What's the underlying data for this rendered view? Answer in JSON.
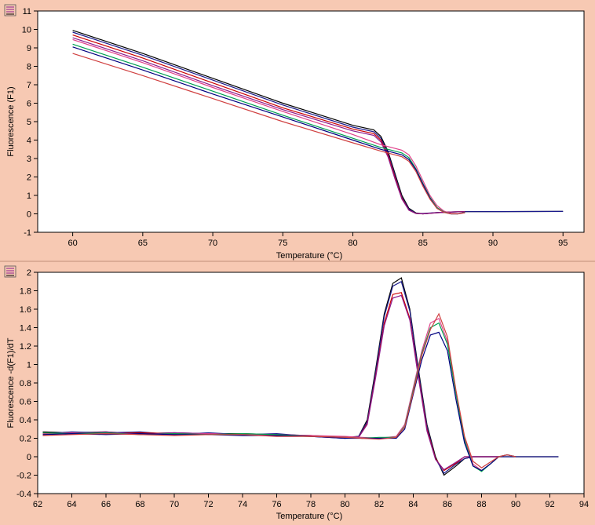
{
  "chart_data": [
    {
      "type": "line",
      "title": "",
      "xlabel": "Temperature (°C)",
      "ylabel": "Fluorescence (F1)",
      "xlim": [
        57.5,
        96.5
      ],
      "ylim": [
        -1,
        11
      ],
      "xticks": [
        60,
        65,
        70,
        75,
        80,
        85,
        90,
        95
      ],
      "yticks": [
        -1,
        0,
        1,
        2,
        3,
        4,
        5,
        6,
        7,
        8,
        9,
        10,
        11
      ],
      "grid": false,
      "legend": "none",
      "series": [
        {
          "color": "#000000",
          "x": [
            60,
            65,
            70,
            75,
            80,
            81.5,
            82,
            82.5,
            83,
            83.5,
            84,
            84.5,
            85,
            86,
            87,
            88,
            95
          ],
          "y": [
            9.95,
            8.7,
            7.35,
            6.0,
            4.8,
            4.55,
            4.2,
            3.4,
            2.2,
            1.0,
            0.3,
            0.05,
            0.0,
            0.07,
            0.1,
            0.12,
            0.13
          ]
        },
        {
          "color": "#1a1a8c",
          "x": [
            60,
            65,
            70,
            75,
            80,
            81.5,
            82,
            82.5,
            83,
            83.5,
            84,
            84.5,
            85,
            86,
            87,
            88,
            95
          ],
          "y": [
            9.85,
            8.6,
            7.25,
            5.9,
            4.7,
            4.45,
            4.1,
            3.3,
            2.1,
            0.9,
            0.25,
            0.03,
            0.02,
            0.07,
            0.1,
            0.12,
            0.13
          ]
        },
        {
          "color": "#cc0000",
          "x": [
            60,
            65,
            70,
            75,
            80,
            81.5,
            82,
            82.5,
            83,
            83.5,
            84,
            84.5,
            85,
            86,
            87,
            88
          ],
          "y": [
            9.7,
            8.45,
            7.1,
            5.75,
            4.6,
            4.35,
            4.0,
            3.2,
            2.0,
            0.85,
            0.2,
            0.02,
            0.0,
            0.06,
            0.1,
            0.12
          ]
        },
        {
          "color": "#8c1a8c",
          "x": [
            60,
            65,
            70,
            75,
            80,
            81.5,
            82,
            82.5,
            83,
            83.5,
            84,
            84.5,
            85,
            86,
            87,
            88
          ],
          "y": [
            9.55,
            8.3,
            6.95,
            5.65,
            4.5,
            4.25,
            3.9,
            3.1,
            1.9,
            0.8,
            0.2,
            0.02,
            0.0,
            0.06,
            0.1,
            0.12
          ]
        },
        {
          "color": "#e0408a",
          "x": [
            60,
            65,
            70,
            75,
            80,
            82,
            83,
            83.5,
            84,
            84.5,
            85,
            85.5,
            86,
            86.5,
            87,
            87.5,
            88
          ],
          "y": [
            9.45,
            8.2,
            6.85,
            5.55,
            4.3,
            3.75,
            3.55,
            3.45,
            3.2,
            2.6,
            1.8,
            1.0,
            0.45,
            0.15,
            0.02,
            0.0,
            0.08
          ]
        },
        {
          "color": "#00a050",
          "x": [
            60,
            65,
            70,
            75,
            80,
            82,
            83,
            83.5,
            84,
            84.5,
            85,
            85.5,
            86,
            86.5,
            87,
            87.5,
            88
          ],
          "y": [
            9.2,
            7.95,
            6.65,
            5.35,
            4.1,
            3.6,
            3.4,
            3.3,
            3.05,
            2.45,
            1.65,
            0.9,
            0.35,
            0.1,
            0.0,
            0.0,
            0.08
          ]
        },
        {
          "color": "#000080",
          "x": [
            60,
            65,
            70,
            75,
            80,
            82,
            83,
            83.5,
            84,
            84.5,
            85,
            85.5,
            86,
            86.5,
            87,
            87.5,
            88
          ],
          "y": [
            9.05,
            7.8,
            6.5,
            5.25,
            4.0,
            3.5,
            3.3,
            3.2,
            2.95,
            2.4,
            1.6,
            0.85,
            0.3,
            0.08,
            0.0,
            0.0,
            0.07
          ]
        },
        {
          "color": "#d04040",
          "x": [
            60,
            65,
            70,
            75,
            80,
            82,
            83,
            83.5,
            84,
            84.5,
            85,
            85.5,
            86,
            86.5,
            87,
            87.5,
            88
          ],
          "y": [
            8.7,
            7.5,
            6.25,
            5.0,
            3.85,
            3.4,
            3.2,
            3.1,
            2.85,
            2.3,
            1.5,
            0.8,
            0.3,
            0.08,
            0.0,
            0.0,
            0.06
          ]
        }
      ]
    },
    {
      "type": "line",
      "title": "",
      "xlabel": "Temperature (°C)",
      "ylabel": "Fluorescence -d(F1)/dT",
      "xlim": [
        62,
        94
      ],
      "ylim": [
        -0.4,
        2
      ],
      "xticks": [
        62,
        64,
        66,
        68,
        70,
        72,
        74,
        76,
        78,
        80,
        82,
        84,
        86,
        88,
        90,
        92,
        94
      ],
      "yticks": [
        -0.4,
        -0.2,
        0,
        0.2,
        0.4,
        0.6,
        0.8,
        1,
        1.2,
        1.4,
        1.6,
        1.8,
        2
      ],
      "grid": false,
      "legend": "none",
      "series": [
        {
          "color": "#000000",
          "x": [
            62.3,
            64,
            66,
            68,
            70,
            72,
            74,
            76,
            78,
            80,
            80.8,
            81.3,
            81.8,
            82.3,
            82.8,
            83.3,
            83.8,
            84.3,
            84.8,
            85.3,
            85.8,
            86.5,
            87,
            87.5,
            88,
            88.5,
            89,
            90,
            92.5
          ],
          "y": [
            0.27,
            0.26,
            0.27,
            0.25,
            0.26,
            0.25,
            0.25,
            0.24,
            0.23,
            0.21,
            0.22,
            0.4,
            0.95,
            1.55,
            1.88,
            1.94,
            1.6,
            0.95,
            0.35,
            0.0,
            -0.2,
            -0.1,
            -0.02,
            0.0,
            0.0,
            0.0,
            0.0,
            0.0,
            0.0
          ]
        },
        {
          "color": "#1a1a8c",
          "x": [
            62.3,
            64,
            66,
            68,
            70,
            72,
            74,
            76,
            78,
            80,
            80.8,
            81.3,
            81.8,
            82.3,
            82.8,
            83.3,
            83.8,
            84.3,
            84.8,
            85.3,
            85.8,
            86.5,
            87,
            87.5,
            88,
            89,
            92.5
          ],
          "y": [
            0.25,
            0.27,
            0.26,
            0.27,
            0.24,
            0.26,
            0.24,
            0.25,
            0.22,
            0.2,
            0.22,
            0.38,
            0.92,
            1.52,
            1.85,
            1.9,
            1.58,
            0.92,
            0.33,
            -0.02,
            -0.18,
            -0.08,
            -0.02,
            0.0,
            0.0,
            0.0,
            0.0
          ]
        },
        {
          "color": "#cc0000",
          "x": [
            62.3,
            64,
            66,
            68,
            70,
            72,
            74,
            76,
            78,
            80,
            80.8,
            81.3,
            81.8,
            82.3,
            82.8,
            83.3,
            83.8,
            84.3,
            84.8,
            85.3,
            85.8,
            86.5,
            87,
            87.5,
            88,
            89
          ],
          "y": [
            0.24,
            0.25,
            0.25,
            0.26,
            0.25,
            0.24,
            0.25,
            0.23,
            0.22,
            0.21,
            0.21,
            0.36,
            0.88,
            1.45,
            1.76,
            1.78,
            1.5,
            0.88,
            0.3,
            -0.02,
            -0.15,
            -0.07,
            0.0,
            0.0,
            0.0,
            0.0
          ]
        },
        {
          "color": "#8c1a8c",
          "x": [
            62.3,
            64,
            66,
            68,
            70,
            72,
            74,
            76,
            78,
            80,
            80.8,
            81.3,
            81.8,
            82.3,
            82.8,
            83.3,
            83.8,
            84.3,
            84.8,
            85.3,
            85.8,
            86.5,
            87,
            87.5,
            88,
            89
          ],
          "y": [
            0.26,
            0.25,
            0.27,
            0.24,
            0.26,
            0.25,
            0.24,
            0.24,
            0.23,
            0.2,
            0.21,
            0.35,
            0.86,
            1.42,
            1.72,
            1.75,
            1.48,
            0.86,
            0.28,
            -0.03,
            -0.14,
            -0.06,
            0.0,
            0.0,
            0.0,
            0.0
          ]
        },
        {
          "color": "#e0408a",
          "x": [
            62.3,
            64,
            66,
            68,
            70,
            72,
            74,
            76,
            78,
            80,
            81,
            82,
            83,
            83.5,
            84,
            84.5,
            85,
            85.5,
            86,
            86.5,
            87,
            87.5,
            88,
            88.5,
            89,
            89.5,
            90
          ],
          "y": [
            0.25,
            0.26,
            0.25,
            0.25,
            0.24,
            0.25,
            0.24,
            0.23,
            0.23,
            0.22,
            0.21,
            0.2,
            0.22,
            0.35,
            0.75,
            1.15,
            1.45,
            1.5,
            1.25,
            0.7,
            0.2,
            -0.08,
            -0.15,
            -0.08,
            0.0,
            0.02,
            0.0
          ]
        },
        {
          "color": "#00a050",
          "x": [
            62.3,
            64,
            66,
            68,
            70,
            72,
            74,
            76,
            78,
            80,
            81,
            82,
            83,
            83.5,
            84,
            84.5,
            85,
            85.5,
            86,
            86.5,
            87,
            87.5,
            88,
            88.5,
            89,
            89.5,
            90
          ],
          "y": [
            0.26,
            0.25,
            0.26,
            0.24,
            0.25,
            0.24,
            0.25,
            0.24,
            0.22,
            0.21,
            0.2,
            0.21,
            0.21,
            0.33,
            0.72,
            1.12,
            1.4,
            1.45,
            1.22,
            0.68,
            0.18,
            -0.1,
            -0.16,
            -0.08,
            0.0,
            0.02,
            0.0
          ]
        },
        {
          "color": "#000080",
          "x": [
            62.3,
            64,
            66,
            68,
            70,
            72,
            74,
            76,
            78,
            80,
            81,
            82,
            83,
            83.5,
            84,
            84.5,
            85,
            85.5,
            86,
            86.5,
            87,
            87.5,
            88,
            88.5,
            89,
            89.5,
            90
          ],
          "y": [
            0.24,
            0.25,
            0.24,
            0.25,
            0.24,
            0.24,
            0.23,
            0.23,
            0.22,
            0.2,
            0.2,
            0.2,
            0.2,
            0.3,
            0.68,
            1.05,
            1.32,
            1.35,
            1.15,
            0.62,
            0.15,
            -0.1,
            -0.15,
            -0.08,
            0.0,
            0.02,
            0.0
          ]
        },
        {
          "color": "#d04040",
          "x": [
            62.3,
            64,
            66,
            68,
            70,
            72,
            74,
            76,
            78,
            80,
            81,
            82,
            83,
            83.5,
            84,
            84.5,
            85,
            85.5,
            86,
            86.5,
            87,
            87.5,
            88,
            88.5,
            89,
            89.5,
            90
          ],
          "y": [
            0.23,
            0.24,
            0.25,
            0.24,
            0.23,
            0.24,
            0.24,
            0.22,
            0.22,
            0.21,
            0.2,
            0.19,
            0.21,
            0.32,
            0.7,
            1.1,
            1.38,
            1.55,
            1.3,
            0.72,
            0.22,
            -0.05,
            -0.12,
            -0.06,
            0.0,
            0.02,
            0.0
          ]
        }
      ]
    }
  ]
}
